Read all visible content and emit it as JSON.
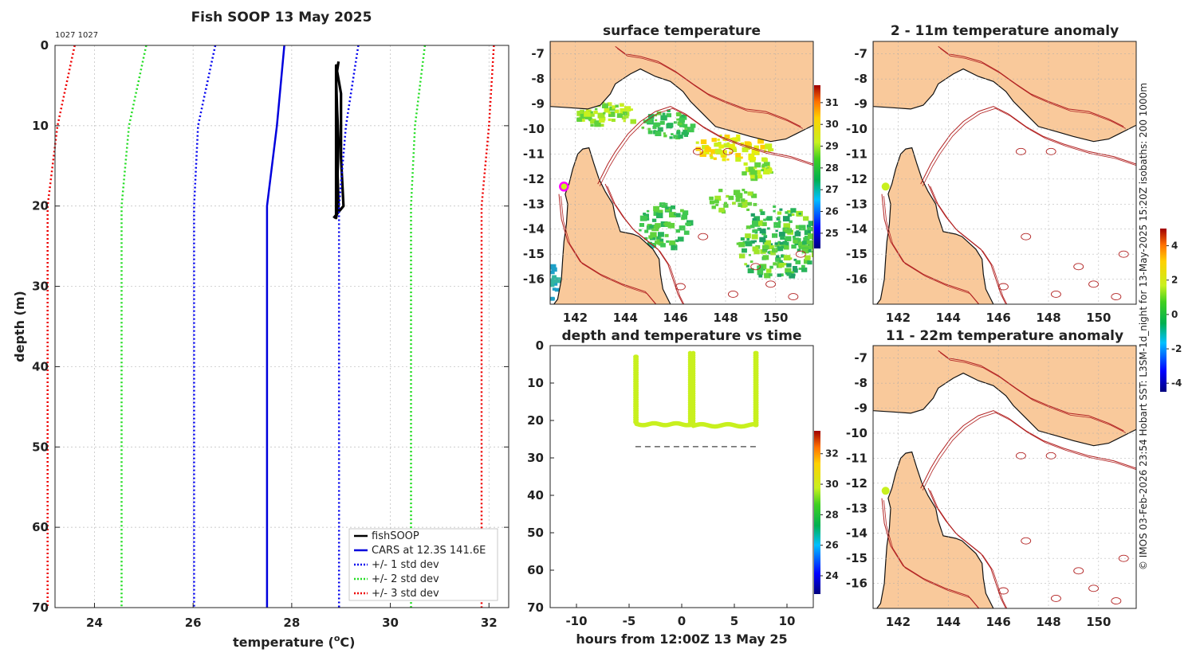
{
  "figure_note": "© IMOS 03-Feb-2026 23:54 Hobart SST: L3SM-1d_night for 13-May-2025 15:20Z isobaths: 200  1000m",
  "colors": {
    "land": "#f9c99b",
    "isobath": "#b22222",
    "coast": "#111111",
    "obs": "#c8f01e",
    "cars": "#0000dd",
    "std1": "#0000ee",
    "std2": "#22dd22",
    "std3": "#ee0000"
  },
  "chart_data": [
    {
      "id": "profile",
      "type": "line",
      "title": "Fish SOOP 13 May 2025",
      "annotation": "1027 1027",
      "xlabel": "temperature (",
      "xlabel_unit": "C)",
      "xlabel_sup": "o",
      "ylabel": "depth (m)",
      "xlim": [
        23.2,
        32.4
      ],
      "ylim": [
        0,
        70
      ],
      "xticks": [
        24,
        26,
        28,
        30,
        32
      ],
      "yticks": [
        0,
        10,
        20,
        30,
        40,
        50,
        60,
        70
      ],
      "series": [
        {
          "name": "fishSOOP",
          "points": [
            [
              28.95,
              2
            ],
            [
              28.9,
              4
            ],
            [
              28.92,
              8
            ],
            [
              28.95,
              12
            ],
            [
              28.93,
              16
            ],
            [
              28.95,
              20
            ],
            [
              28.9,
              21.5
            ],
            [
              28.9,
              2.5
            ],
            [
              29.0,
              6
            ],
            [
              29.0,
              14
            ],
            [
              29.05,
              20
            ],
            [
              28.85,
              21.5
            ]
          ]
        },
        {
          "name": "CARS at 12.3S 141.6E",
          "points": [
            [
              27.85,
              0
            ],
            [
              27.7,
              10
            ],
            [
              27.5,
              20
            ],
            [
              27.5,
              70
            ]
          ]
        },
        {
          "name": "+/- 1 std dev",
          "points": [
            [
              26.45,
              0
            ],
            [
              26.1,
              10
            ],
            [
              26.02,
              20
            ],
            [
              26.02,
              70
            ]
          ]
        },
        {
          "name": "+/- 1 std dev upper",
          "points": [
            [
              29.35,
              0
            ],
            [
              29.1,
              10
            ],
            [
              28.96,
              20
            ],
            [
              28.96,
              70
            ]
          ]
        },
        {
          "name": "+/- 2 std dev",
          "points": [
            [
              25.05,
              0
            ],
            [
              24.7,
              10
            ],
            [
              24.55,
              20
            ],
            [
              24.55,
              70
            ]
          ]
        },
        {
          "name": "+/- 2 std dev upper",
          "points": [
            [
              30.7,
              0
            ],
            [
              30.5,
              10
            ],
            [
              30.42,
              20
            ],
            [
              30.42,
              70
            ]
          ]
        },
        {
          "name": "+/- 3 std dev",
          "points": [
            [
              23.6,
              0
            ],
            [
              23.25,
              10
            ],
            [
              23.05,
              20
            ],
            [
              23.05,
              70
            ]
          ]
        },
        {
          "name": "+/- 3 std dev upper",
          "points": [
            [
              32.1,
              0
            ],
            [
              32.0,
              10
            ],
            [
              31.85,
              20
            ],
            [
              31.85,
              70
            ]
          ]
        }
      ],
      "legend": [
        "fishSOOP",
        "CARS at 12.3S 141.6E",
        "+/- 1 std dev",
        "+/- 2 std dev",
        "+/- 3 std dev"
      ]
    },
    {
      "id": "sst_map",
      "type": "heatmap",
      "title": "surface temperature",
      "xlim": [
        141,
        151.5
      ],
      "ylim": [
        -17,
        -6.5
      ],
      "xticks": [
        142,
        144,
        146,
        148,
        150
      ],
      "yticks": [
        -7,
        -8,
        -9,
        -10,
        -11,
        -12,
        -13,
        -14,
        -15,
        -16
      ],
      "marker": [
        141.55,
        -12.3
      ],
      "colorbar": {
        "min": 24.3,
        "max": 31.8,
        "ticks": [
          25,
          26,
          27,
          28,
          29,
          30,
          31
        ]
      }
    },
    {
      "id": "time_depth",
      "type": "scatter",
      "title": "depth and temperature vs time",
      "xlabel": "hours from 12:00Z 13 May 25",
      "xlim": [
        -12.5,
        12.5
      ],
      "ylim": [
        0,
        70
      ],
      "xticks": [
        -10,
        -5,
        0,
        5,
        10
      ],
      "yticks": [
        0,
        10,
        20,
        30,
        40,
        50,
        60,
        70
      ],
      "casts": [
        [
          -4.4,
          -4.3,
          3,
          21
        ],
        [
          0.8,
          1.1,
          2,
          21.5
        ],
        [
          7.0,
          7.1,
          2,
          21.5
        ]
      ],
      "bottom_depth": 27,
      "colorbar": {
        "min": 22.8,
        "max": 33.5,
        "ticks": [
          24,
          26,
          28,
          30,
          32
        ]
      }
    },
    {
      "id": "anom_top",
      "type": "heatmap",
      "title": "2 - 11m temperature anomaly",
      "xlim": [
        141,
        151.5
      ],
      "ylim": [
        -17,
        -6.5
      ],
      "xticks": [
        142,
        144,
        146,
        148,
        150
      ],
      "yticks": [
        -7,
        -8,
        -9,
        -10,
        -11,
        -12,
        -13,
        -14,
        -15,
        -16
      ],
      "marker": [
        141.5,
        -12.3
      ],
      "colorbar": {
        "min": -4.5,
        "max": 5,
        "ticks": [
          -4,
          -2,
          0,
          2,
          4
        ]
      }
    },
    {
      "id": "anom_bottom",
      "type": "heatmap",
      "title": "11 - 22m temperature anomaly",
      "xlim": [
        141,
        151.5
      ],
      "ylim": [
        -17,
        -6.5
      ],
      "xticks": [
        142,
        144,
        146,
        148,
        150
      ],
      "yticks": [
        -7,
        -8,
        -9,
        -10,
        -11,
        -12,
        -13,
        -14,
        -15,
        -16
      ],
      "marker": [
        141.5,
        -12.3
      ]
    }
  ]
}
